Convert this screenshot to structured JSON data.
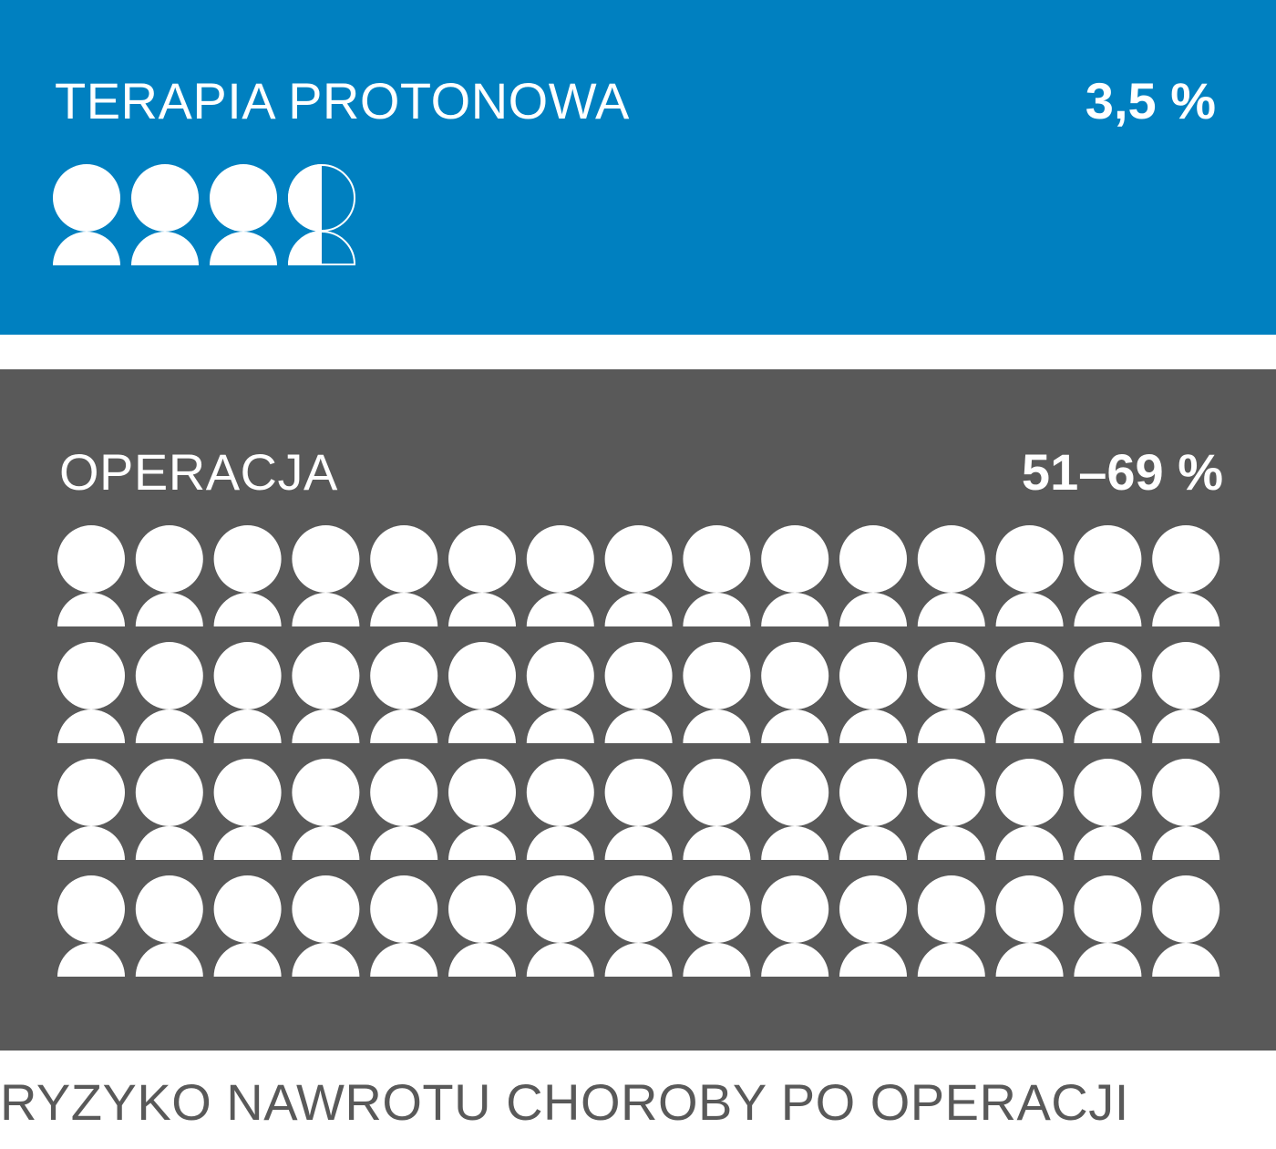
{
  "colors": {
    "proton_background": "#0080C0",
    "surgery_background": "#595959",
    "icon_fill": "#ffffff",
    "caption_text": "#595959"
  },
  "icon_name": "person-icon",
  "chart_data": [
    {
      "type": "pictogram",
      "label": "TERAPIA PROTONOWA",
      "value_text": "3,5 %",
      "icon_count": 3.5
    },
    {
      "type": "pictogram",
      "label": "OPERACJA",
      "value_text": "51–69 %",
      "icon_count": 60,
      "grid_rows": 4,
      "grid_columns": 15
    }
  ],
  "caption": "RYZYKO NAWROTU CHOROBY PO OPERACJI"
}
